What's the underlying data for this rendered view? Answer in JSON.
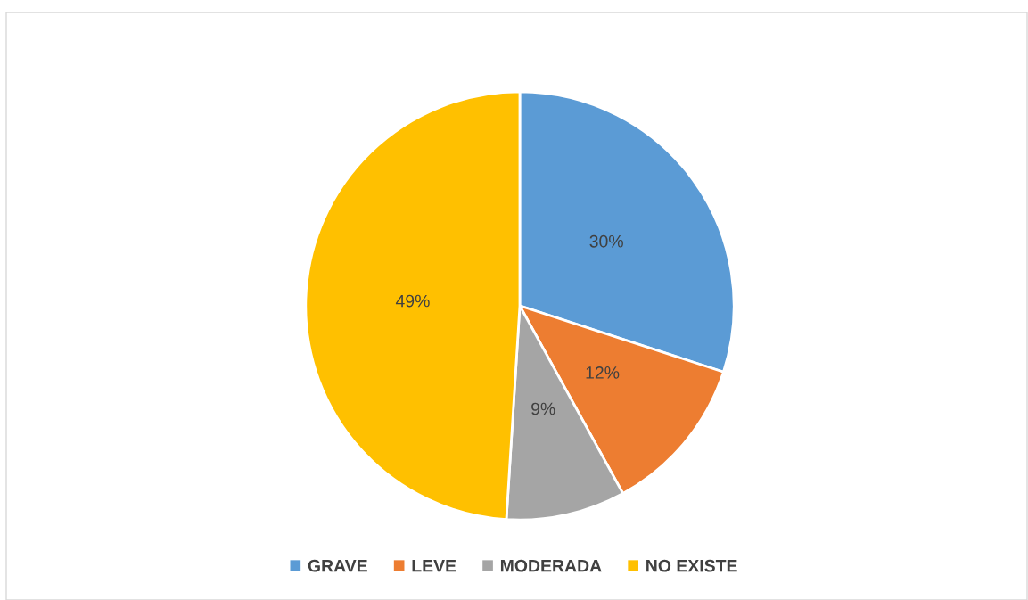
{
  "chart_data": {
    "type": "pie",
    "categories": [
      "GRAVE",
      "LEVE",
      "MODERADA",
      "NO EXISTE"
    ],
    "values": [
      30,
      12,
      9,
      49
    ],
    "colors": [
      "#5b9bd5",
      "#ed7d31",
      "#a5a5a5",
      "#ffc000"
    ],
    "value_labels": [
      "30%",
      "12%",
      "9%",
      "49%"
    ],
    "legend": "bottom"
  }
}
